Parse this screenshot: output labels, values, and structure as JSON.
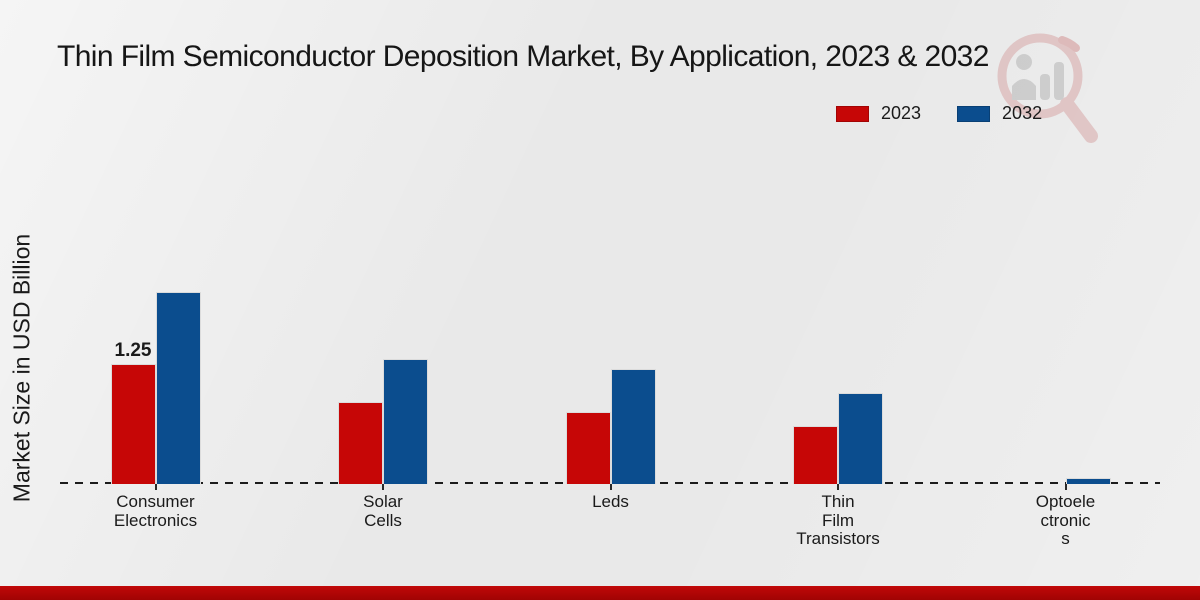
{
  "page": {
    "title": "Thin Film Semiconductor Deposition Market, By Application, 2023 & 2032"
  },
  "axes": {
    "y_label": "Market Size in USD Billion"
  },
  "legend": {
    "items": [
      {
        "label": "2023",
        "color": "#c60606"
      },
      {
        "label": "2032",
        "color": "#0b4d8e"
      }
    ]
  },
  "chart_data": {
    "type": "bar",
    "title": "Thin Film Semiconductor Deposition Market, By Application, 2023 & 2032",
    "xlabel": "",
    "ylabel": "Market Size in USD Billion",
    "categories": [
      "Consumer Electronics",
      "Solar Cells",
      "Leds",
      "Thin Film Transistors",
      "Optoelectronics"
    ],
    "categories_display": [
      "Consumer\nElectronics",
      "Solar\nCells",
      "Leds",
      "Thin\nFilm\nTransistors",
      "Optoele\nctronic\ns"
    ],
    "series": [
      {
        "name": "2023",
        "color": "#c60606",
        "values": [
          1.25,
          0.85,
          0.75,
          0.6,
          0
        ]
      },
      {
        "name": "2032",
        "color": "#0b4d8e",
        "values": [
          2.0,
          1.3,
          1.2,
          0.95,
          0.06
        ]
      }
    ],
    "bar_labels": [
      {
        "series_index": 0,
        "category_index": 0,
        "text": "1.25"
      }
    ],
    "unit": "USD Billion",
    "ylim": [
      0,
      2.2
    ],
    "grid": false,
    "baseline_style": "dashed",
    "legend_position": "top-right"
  },
  "watermark": {
    "name": "market-research-magnifier-logo"
  },
  "footer": {
    "bar_color_top": "#c10808",
    "bar_color_bottom": "#a00303"
  }
}
